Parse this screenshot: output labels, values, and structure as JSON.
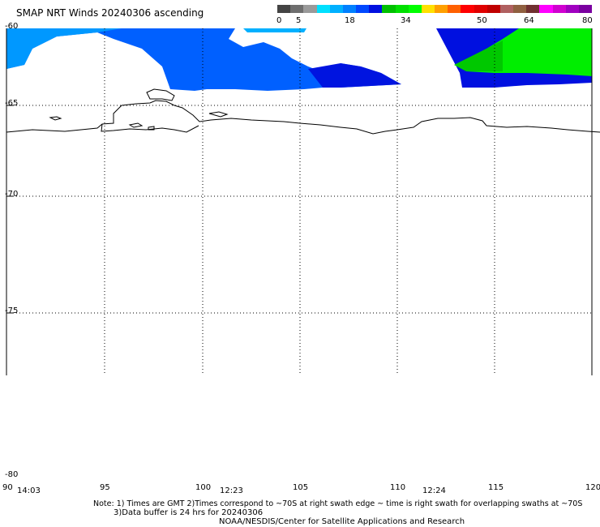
{
  "title": "SMAP NRT Winds 20240306 ascending",
  "colorbar": {
    "colors": [
      "#444444",
      "#6e6e6e",
      "#9a9a9a",
      "#00e0ff",
      "#00b0ff",
      "#0080ff",
      "#0048ff",
      "#0010e0",
      "#00c000",
      "#00e000",
      "#00ff00",
      "#ffe000",
      "#ffa000",
      "#ff6000",
      "#ff0000",
      "#e00000",
      "#c00000",
      "#b06060",
      "#906040",
      "#703030",
      "#ff00ff",
      "#d000d0",
      "#a000c0",
      "#7a00a0"
    ],
    "ticks": [
      "0",
      "5",
      "18",
      "34",
      "50",
      "64",
      "80"
    ]
  },
  "lat_labels": [
    "-60",
    "-65",
    "-70",
    "-75",
    "-80"
  ],
  "lon_labels": [
    "90",
    "95",
    "100",
    "105",
    "110",
    "115",
    "120"
  ],
  "time_labels": [
    "14:03",
    "12:23",
    "12:24"
  ],
  "notes": {
    "line1": "Note: 1) Times are GMT 2)Times correspond to ~70S at right swath edge ~ time is right swath for overlapping swaths at ~70S",
    "line2": "3)Data buffer is 24 hrs for 20240306",
    "line3": "NOAA/NESDIS/Center for Satellite Applications and Research"
  }
}
